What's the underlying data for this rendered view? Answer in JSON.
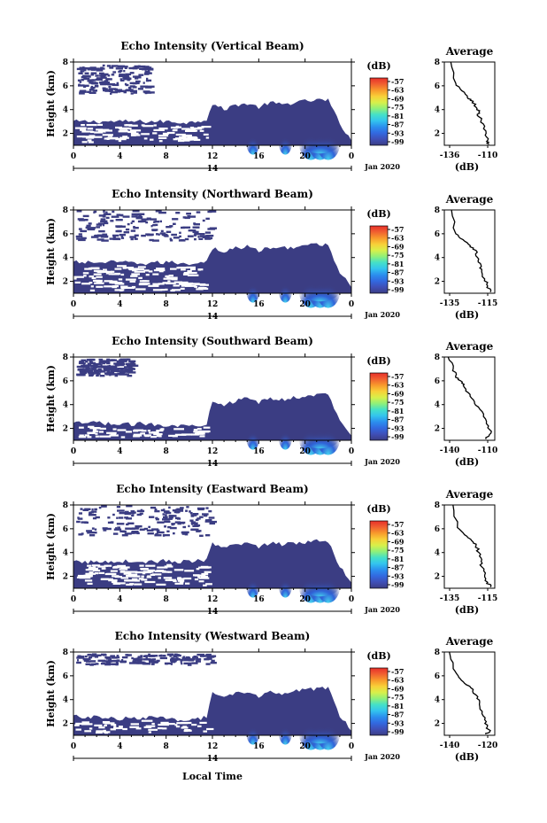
{
  "figure": {
    "xlabel": "Local Time"
  },
  "colorbar_ticks": [
    "-57",
    "-63",
    "-69",
    "-75",
    "-81",
    "-87",
    "-93",
    "-99"
  ],
  "colorbar_unit": "(dB)",
  "colors": {
    "echo_dark": "#3b3d83",
    "echo_blue": "#2f55d6",
    "echo_cyan": "#33c4ee",
    "colorbar": [
      "#3b3d83",
      "#3f4fb7",
      "#3269e0",
      "#2b8fee",
      "#33c4ee",
      "#44e0c8",
      "#8ff07a",
      "#d8f04a",
      "#f8d038",
      "#f89a2c",
      "#f06030",
      "#e8302a"
    ]
  },
  "chart_data": [
    {
      "type": "heatmap",
      "title": "Echo Intensity (Vertical Beam)",
      "ylabel": "Height (km)",
      "xlabel": "Local Time",
      "x_ticks": [
        "0",
        "4",
        "8",
        "12",
        "16",
        "20",
        "0"
      ],
      "y_ticks": [
        "2",
        "4",
        "6",
        "8"
      ],
      "date_label": "14",
      "month_label": "Jan 2020",
      "xlim": [
        0,
        24
      ],
      "ylim": [
        1,
        8
      ],
      "colorbar_unit": "(dB)",
      "mask_profile": {
        "time": [
          0,
          2,
          4,
          6,
          8,
          10,
          11.5,
          12,
          13,
          14,
          15,
          16,
          17,
          18,
          19,
          20,
          21,
          22,
          23,
          24
        ],
        "top_km": [
          3,
          3,
          3,
          3,
          3,
          2.9,
          3.2,
          4.5,
          4.0,
          4.4,
          4.5,
          4.2,
          4.6,
          4.4,
          4.6,
          4.7,
          4.8,
          4.8,
          2.8,
          1.5
        ]
      },
      "upper_patch": {
        "time_range": [
          0.2,
          6.5
        ],
        "height_range": [
          5.4,
          7.8
        ]
      },
      "convective_peaks_time": [
        15.5,
        18.3,
        20.5,
        21.3,
        22.0
      ]
    },
    {
      "type": "line",
      "title": "Average",
      "xlabel": "(dB)",
      "ylabel": "",
      "x_ticks": [
        "-136",
        "-110"
      ],
      "y_ticks": [
        "2",
        "4",
        "6",
        "8"
      ],
      "xlim": [
        -140,
        -105
      ],
      "ylim": [
        1,
        8
      ],
      "x": [
        -135.5,
        -132,
        -128,
        -124,
        -120,
        -118,
        -116,
        -116,
        -113,
        -111,
        -110,
        -109
      ],
      "y": [
        8,
        6.2,
        5.6,
        5.0,
        4.7,
        4.2,
        3.8,
        3.4,
        2.8,
        2.0,
        1.4,
        1.1
      ]
    },
    {
      "type": "heatmap",
      "title": "Echo Intensity (Northward Beam)",
      "ylabel": "Height (km)",
      "xlabel": "Local Time",
      "x_ticks": [
        "0",
        "4",
        "8",
        "12",
        "16",
        "20",
        "0"
      ],
      "y_ticks": [
        "2",
        "4",
        "6",
        "8"
      ],
      "date_label": "14",
      "month_label": "Jan 2020",
      "xlim": [
        0,
        24
      ],
      "ylim": [
        1,
        8
      ],
      "colorbar_unit": "(dB)",
      "mask_profile": {
        "time": [
          0,
          2,
          4,
          6,
          8,
          10,
          11.5,
          12,
          13,
          14,
          15,
          16,
          17,
          18,
          19,
          20,
          21,
          22,
          23,
          24
        ],
        "top_km": [
          3.6,
          3.6,
          3.6,
          3.5,
          3.6,
          3.5,
          3.7,
          4.8,
          4.5,
          4.8,
          4.9,
          4.6,
          4.8,
          4.8,
          4.9,
          5.0,
          5.1,
          5.0,
          2.8,
          1.6
        ]
      },
      "upper_patch": {
        "time_range": [
          0.2,
          11.8
        ],
        "height_range": [
          5.5,
          8.0
        ]
      },
      "convective_peaks_time": [
        15.5,
        18.3,
        20.5,
        21.3,
        22.0
      ]
    },
    {
      "type": "line",
      "title": "Average",
      "xlabel": "(dB)",
      "ylabel": "",
      "x_ticks": [
        "-135",
        "-115"
      ],
      "y_ticks": [
        "2",
        "4",
        "6",
        "8"
      ],
      "xlim": [
        -140,
        -105
      ],
      "ylim": [
        1,
        8
      ],
      "x": [
        -135,
        -132,
        -127,
        -122,
        -118,
        -117,
        -115,
        -114,
        -112,
        -110,
        -108
      ],
      "y": [
        8,
        6.0,
        5.5,
        5.0,
        4.6,
        4.0,
        3.5,
        3.0,
        2.2,
        1.6,
        1.1
      ]
    },
    {
      "type": "heatmap",
      "title": "Echo Intensity (Southward Beam)",
      "ylabel": "Height (km)",
      "xlabel": "Local Time",
      "x_ticks": [
        "0",
        "4",
        "8",
        "12",
        "16",
        "20",
        "0"
      ],
      "y_ticks": [
        "2",
        "4",
        "6",
        "8"
      ],
      "date_label": "14",
      "month_label": "Jan 2020",
      "xlim": [
        0,
        24
      ],
      "ylim": [
        1,
        8
      ],
      "colorbar_unit": "(dB)",
      "mask_profile": {
        "time": [
          0,
          2,
          4,
          6,
          8,
          10,
          11.5,
          12,
          13,
          14,
          15,
          16,
          17,
          18,
          19,
          20,
          21,
          22,
          23,
          24
        ],
        "top_km": [
          2.4,
          2.5,
          2.3,
          2.4,
          2.3,
          2.2,
          2.4,
          4.4,
          4.0,
          4.3,
          4.5,
          4.2,
          4.5,
          4.4,
          4.6,
          4.7,
          4.8,
          4.9,
          2.6,
          1.5
        ]
      },
      "upper_patch": {
        "time_range": [
          0.2,
          5.0
        ],
        "height_range": [
          6.5,
          7.9
        ]
      },
      "convective_peaks_time": [
        15.5,
        18.3,
        20.5,
        21.3,
        22.0
      ]
    },
    {
      "type": "line",
      "title": "Average",
      "xlabel": "(dB)",
      "ylabel": "",
      "x_ticks": [
        "-140",
        "-110"
      ],
      "y_ticks": [
        "2",
        "4",
        "6",
        "8"
      ],
      "xlim": [
        -145,
        -105
      ],
      "ylim": [
        1,
        8
      ],
      "x": [
        -142,
        -138,
        -136,
        -132,
        -130,
        -126,
        -122,
        -118,
        -114,
        -110,
        -108,
        -112
      ],
      "y": [
        8,
        7.0,
        6.4,
        6.0,
        5.6,
        5.0,
        4.4,
        3.8,
        3.0,
        2.2,
        1.6,
        1.1
      ]
    },
    {
      "type": "heatmap",
      "title": "Echo Intensity (Eastward Beam)",
      "ylabel": "Height (km)",
      "xlabel": "Local Time",
      "x_ticks": [
        "0",
        "4",
        "8",
        "12",
        "16",
        "20",
        "0"
      ],
      "y_ticks": [
        "2",
        "4",
        "6",
        "8"
      ],
      "date_label": "14",
      "month_label": "Jan 2020",
      "xlim": [
        0,
        24
      ],
      "ylim": [
        1,
        8
      ],
      "colorbar_unit": "(dB)",
      "mask_profile": {
        "time": [
          0,
          2,
          4,
          6,
          8,
          10,
          11.5,
          12,
          13,
          14,
          15,
          16,
          17,
          18,
          19,
          20,
          21,
          22,
          23,
          24
        ],
        "top_km": [
          3.2,
          3.2,
          3.3,
          3.2,
          3.3,
          3.2,
          3.4,
          4.7,
          4.3,
          4.7,
          4.8,
          4.5,
          4.8,
          4.7,
          4.8,
          4.9,
          5.0,
          5.0,
          2.8,
          1.6
        ]
      },
      "upper_patch": {
        "time_range": [
          0.2,
          11.8
        ],
        "height_range": [
          5.5,
          8.0
        ]
      },
      "convective_peaks_time": [
        15.5,
        18.3,
        20.5,
        21.3,
        22.0
      ]
    },
    {
      "type": "line",
      "title": "Average",
      "xlabel": "(dB)",
      "ylabel": "",
      "x_ticks": [
        "-135",
        "-115"
      ],
      "y_ticks": [
        "2",
        "4",
        "6",
        "8"
      ],
      "xlim": [
        -140,
        -105
      ],
      "ylim": [
        1,
        8
      ],
      "x": [
        -134,
        -131,
        -126,
        -121,
        -118,
        -116,
        -114,
        -114,
        -112,
        -110,
        -108
      ],
      "y": [
        8,
        6.1,
        5.5,
        5.0,
        4.6,
        4.0,
        3.4,
        2.8,
        2.1,
        1.5,
        1.1
      ]
    },
    {
      "type": "heatmap",
      "title": "Echo Intensity (Westward Beam)",
      "ylabel": "Height (km)",
      "xlabel": "Local Time",
      "x_ticks": [
        "0",
        "4",
        "8",
        "12",
        "16",
        "20",
        "0"
      ],
      "y_ticks": [
        "2",
        "4",
        "6",
        "8"
      ],
      "date_label": "14",
      "month_label": "Jan 2020",
      "xlim": [
        0,
        24
      ],
      "ylim": [
        1,
        8
      ],
      "colorbar_unit": "(dB)",
      "mask_profile": {
        "time": [
          0,
          2,
          4,
          6,
          8,
          10,
          11.5,
          12,
          13,
          14,
          15,
          16,
          17,
          18,
          19,
          20,
          21,
          22,
          23,
          24
        ],
        "top_km": [
          2.6,
          2.5,
          2.4,
          2.5,
          2.4,
          2.3,
          2.5,
          4.5,
          4.1,
          4.5,
          4.6,
          4.3,
          4.6,
          4.5,
          4.7,
          4.8,
          4.9,
          5.0,
          2.7,
          1.5
        ]
      },
      "upper_patch": {
        "time_range": [
          0.2,
          12.0
        ],
        "height_range": [
          7.0,
          7.9
        ]
      },
      "convective_peaks_time": [
        15.5,
        18.3,
        20.5,
        21.3,
        22.0
      ]
    },
    {
      "type": "line",
      "title": "Average",
      "xlabel": "(dB)",
      "ylabel": "",
      "x_ticks": [
        "-140",
        "-120"
      ],
      "y_ticks": [
        "2",
        "4",
        "6",
        "8"
      ],
      "xlim": [
        -145,
        -105
      ],
      "ylim": [
        1,
        8
      ],
      "x": [
        -141,
        -138,
        -134,
        -130,
        -124,
        -120,
        -117,
        -115,
        -113,
        -111,
        -109,
        -112
      ],
      "y": [
        8,
        6.8,
        6.0,
        5.5,
        5.0,
        4.4,
        3.8,
        3.0,
        2.3,
        1.7,
        1.3,
        1.1
      ]
    }
  ]
}
